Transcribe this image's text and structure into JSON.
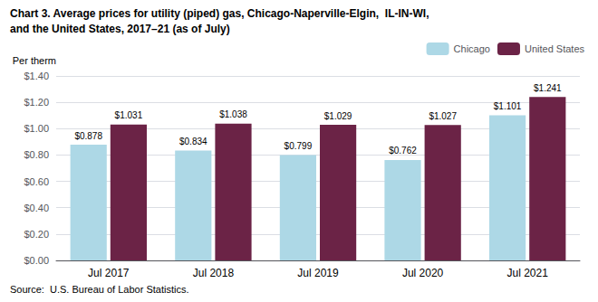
{
  "chart_data": {
    "type": "bar",
    "title": "Chart 3. Average prices for utility (piped) gas, Chicago-Naperville-Elgin,  IL-IN-WI,",
    "subtitle": "and the United States, 2017–21 (as of July)",
    "ylabel": "Per therm",
    "annotations": [
      "Source:  U.S. Bureau of Labor Statistics."
    ],
    "categories": [
      "Jul 2017",
      "Jul 2018",
      "Jul 2019",
      "Jul 2020",
      "Jul 2021"
    ],
    "series": [
      {
        "name": "Chicago",
        "color": "#ADD8E6",
        "values": [
          0.878,
          0.834,
          0.799,
          0.762,
          1.101
        ],
        "value_labels": [
          "$0.878",
          "$0.834",
          "$0.799",
          "$0.762",
          "$1.101"
        ]
      },
      {
        "name": "United States",
        "color": "#6B2346",
        "values": [
          1.031,
          1.038,
          1.029,
          1.027,
          1.241
        ],
        "value_labels": [
          "$1.031",
          "$1.038",
          "$1.029",
          "$1.027",
          "$1.241"
        ]
      }
    ],
    "ylim": [
      0,
      1.4
    ],
    "yticks": [
      {
        "value": 0,
        "label": "$0.00"
      },
      {
        "value": 0.2,
        "label": "$0.20"
      },
      {
        "value": 0.4,
        "label": "$0.40"
      },
      {
        "value": 0.6,
        "label": "$0.60"
      },
      {
        "value": 0.8,
        "label": "$0.80"
      },
      {
        "value": 1.0,
        "label": "$1.00"
      },
      {
        "value": 1.2,
        "label": "$1.20"
      },
      {
        "value": 1.4,
        "label": "$1.40"
      }
    ],
    "grid": true,
    "legend": "upper right",
    "data_labels": true
  }
}
